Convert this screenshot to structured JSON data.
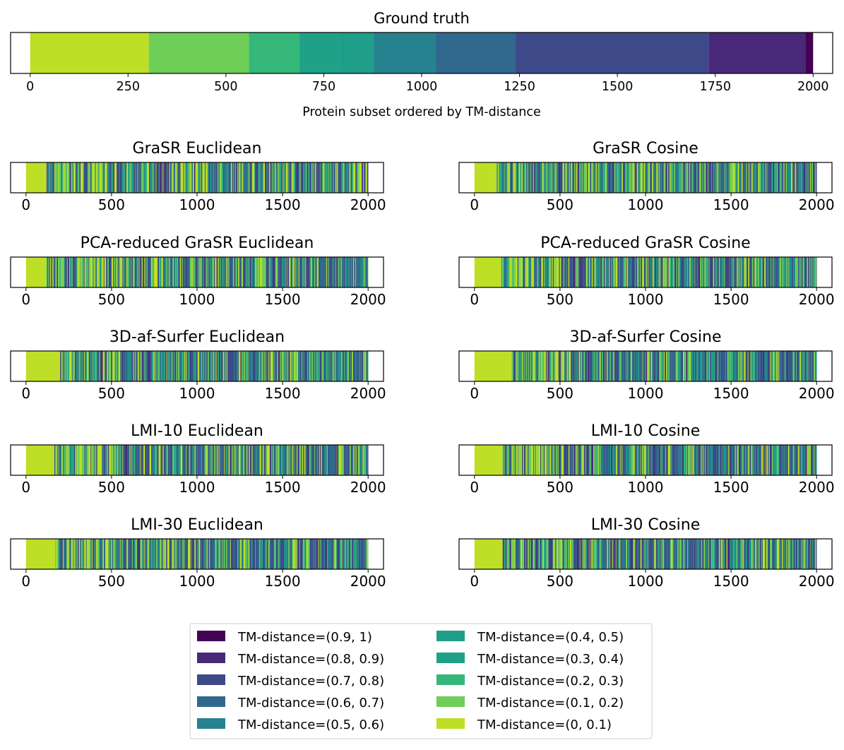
{
  "chart_data": [
    {
      "type": "heatmap",
      "title": "Ground truth",
      "xlabel": "Protein subset ordered by TM-distance",
      "xlim": [
        -50,
        2050
      ],
      "xticks": [
        0,
        250,
        500,
        750,
        1000,
        1250,
        1500,
        1750,
        2000
      ],
      "xticklabels": [
        "0",
        "250",
        "500",
        "750",
        "1000",
        "1250",
        "1500",
        "1750",
        "2000"
      ],
      "segments": [
        {
          "start": 0,
          "end": 303,
          "bin": "TM-distance=(0, 0.1)"
        },
        {
          "start": 303,
          "end": 559,
          "bin": "TM-distance=(0.1, 0.2)"
        },
        {
          "start": 559,
          "end": 688,
          "bin": "TM-distance=(0.2, 0.3)"
        },
        {
          "start": 688,
          "end": 789,
          "bin": "TM-distance=(0.3, 0.4)"
        },
        {
          "start": 789,
          "end": 876,
          "bin": "TM-distance=(0.4, 0.5)"
        },
        {
          "start": 876,
          "end": 1036,
          "bin": "TM-distance=(0.5, 0.6)"
        },
        {
          "start": 1036,
          "end": 1240,
          "bin": "TM-distance=(0.6, 0.7)"
        },
        {
          "start": 1240,
          "end": 1733,
          "bin": "TM-distance=(0.7, 0.8)"
        },
        {
          "start": 1733,
          "end": 1980,
          "bin": "TM-distance=(0.8, 0.9)"
        },
        {
          "start": 1980,
          "end": 2000,
          "bin": "TM-distance=(0.9, 1)"
        }
      ]
    },
    {
      "type": "heatmap",
      "title": "GraSR Euclidean",
      "xlim": [
        -90,
        2090
      ],
      "xticks": [
        0,
        500,
        1000,
        1500,
        2000
      ],
      "xticklabels": [
        "0",
        "500",
        "1000",
        "1500",
        "2000"
      ],
      "n": 2000,
      "pure_until": 120,
      "mix": [
        0.18,
        0.15,
        0.07,
        0.05,
        0.05,
        0.1,
        0.13,
        0.22,
        0.05,
        0.0
      ]
    },
    {
      "type": "heatmap",
      "title": "GraSR Cosine",
      "xlim": [
        -90,
        2090
      ],
      "xticks": [
        0,
        500,
        1000,
        1500,
        2000
      ],
      "xticklabels": [
        "0",
        "500",
        "1000",
        "1500",
        "2000"
      ],
      "n": 2000,
      "pure_until": 130,
      "mix": [
        0.16,
        0.15,
        0.07,
        0.05,
        0.05,
        0.1,
        0.13,
        0.24,
        0.05,
        0.0
      ]
    },
    {
      "type": "heatmap",
      "title": "PCA-reduced GraSR Euclidean",
      "xlim": [
        -90,
        2090
      ],
      "xticks": [
        0,
        500,
        1000,
        1500,
        2000
      ],
      "xticklabels": [
        "0",
        "500",
        "1000",
        "1500",
        "2000"
      ],
      "n": 2000,
      "pure_until": 120,
      "mix": [
        0.18,
        0.15,
        0.07,
        0.05,
        0.05,
        0.1,
        0.13,
        0.22,
        0.05,
        0.0
      ]
    },
    {
      "type": "heatmap",
      "title": "PCA-reduced GraSR Cosine",
      "xlim": [
        -90,
        2090
      ],
      "xticks": [
        0,
        500,
        1000,
        1500,
        2000
      ],
      "xticklabels": [
        "0",
        "500",
        "1000",
        "1500",
        "2000"
      ],
      "n": 2000,
      "pure_until": 150,
      "mix": [
        0.15,
        0.15,
        0.07,
        0.05,
        0.05,
        0.1,
        0.14,
        0.24,
        0.05,
        0.0
      ]
    },
    {
      "type": "heatmap",
      "title": "3D-af-Surfer Euclidean",
      "xlim": [
        -90,
        2090
      ],
      "xticks": [
        0,
        500,
        1000,
        1500,
        2000
      ],
      "xticklabels": [
        "0",
        "500",
        "1000",
        "1500",
        "2000"
      ],
      "n": 2000,
      "pure_until": 200,
      "mix": [
        0.12,
        0.14,
        0.08,
        0.06,
        0.05,
        0.11,
        0.14,
        0.25,
        0.05,
        0.0
      ]
    },
    {
      "type": "heatmap",
      "title": "3D-af-Surfer Cosine",
      "xlim": [
        -90,
        2090
      ],
      "xticks": [
        0,
        500,
        1000,
        1500,
        2000
      ],
      "xticklabels": [
        "0",
        "500",
        "1000",
        "1500",
        "2000"
      ],
      "n": 2000,
      "pure_until": 210,
      "mix": [
        0.1,
        0.13,
        0.08,
        0.06,
        0.06,
        0.12,
        0.15,
        0.25,
        0.05,
        0.0
      ]
    },
    {
      "type": "heatmap",
      "title": "LMI-10 Euclidean",
      "xlim": [
        -90,
        2090
      ],
      "xticks": [
        0,
        500,
        1000,
        1500,
        2000
      ],
      "xticklabels": [
        "0",
        "500",
        "1000",
        "1500",
        "2000"
      ],
      "n": 2000,
      "pure_until": 165,
      "mix": [
        0.14,
        0.12,
        0.07,
        0.05,
        0.05,
        0.11,
        0.15,
        0.26,
        0.05,
        0.0
      ]
    },
    {
      "type": "heatmap",
      "title": "LMI-10 Cosine",
      "xlim": [
        -90,
        2090
      ],
      "xticks": [
        0,
        500,
        1000,
        1500,
        2000
      ],
      "xticklabels": [
        "0",
        "500",
        "1000",
        "1500",
        "2000"
      ],
      "n": 2000,
      "pure_until": 165,
      "mix": [
        0.14,
        0.12,
        0.07,
        0.05,
        0.05,
        0.11,
        0.15,
        0.26,
        0.05,
        0.0
      ]
    },
    {
      "type": "heatmap",
      "title": "LMI-30 Euclidean",
      "xlim": [
        -90,
        2090
      ],
      "xticks": [
        0,
        500,
        1000,
        1500,
        2000
      ],
      "xticklabels": [
        "0",
        "500",
        "1000",
        "1500",
        "2000"
      ],
      "n": 2000,
      "pure_until": 170,
      "mix": [
        0.14,
        0.12,
        0.07,
        0.05,
        0.05,
        0.11,
        0.15,
        0.26,
        0.05,
        0.0
      ]
    },
    {
      "type": "heatmap",
      "title": "LMI-30 Cosine",
      "xlim": [
        -90,
        2090
      ],
      "xticks": [
        0,
        500,
        1000,
        1500,
        2000
      ],
      "xticklabels": [
        "0",
        "500",
        "1000",
        "1500",
        "2000"
      ],
      "n": 2000,
      "pure_until": 165,
      "mix": [
        0.14,
        0.12,
        0.07,
        0.05,
        0.05,
        0.11,
        0.15,
        0.26,
        0.05,
        0.0
      ]
    }
  ],
  "legend": {
    "placement": "bottom-center",
    "entries": [
      {
        "label": "TM-distance=(0.9, 1)",
        "color": "#440154"
      },
      {
        "label": "TM-distance=(0.8, 0.9)",
        "color": "#482878"
      },
      {
        "label": "TM-distance=(0.7, 0.8)",
        "color": "#3e4989"
      },
      {
        "label": "TM-distance=(0.6, 0.7)",
        "color": "#31688e"
      },
      {
        "label": "TM-distance=(0.5, 0.6)",
        "color": "#26828e"
      },
      {
        "label": "TM-distance=(0.4, 0.5)",
        "color": "#1f9e89"
      },
      {
        "label": "TM-distance=(0.3, 0.4)",
        "color": "#1fa187"
      },
      {
        "label": "TM-distance=(0.2, 0.3)",
        "color": "#35b779"
      },
      {
        "label": "TM-distance=(0.1, 0.2)",
        "color": "#6ece58"
      },
      {
        "label": "TM-distance=(0, 0.1)",
        "color": "#bddf26"
      }
    ]
  }
}
